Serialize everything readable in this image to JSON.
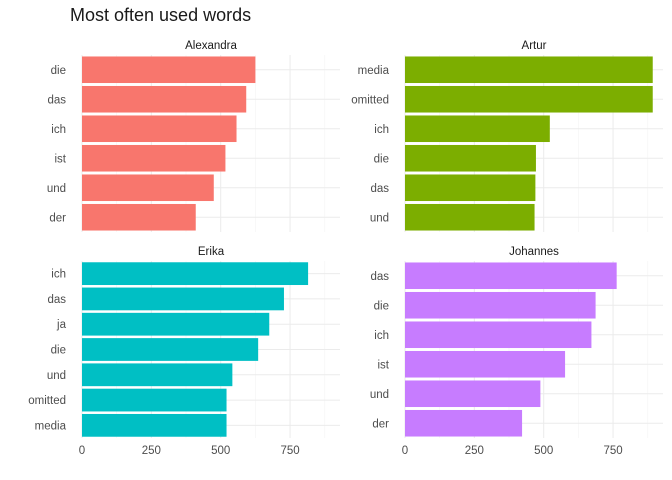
{
  "chart_data": {
    "type": "bar",
    "orientation": "horizontal",
    "title": "Most often used words",
    "xlabel": "",
    "ylabel": "",
    "xlim": [
      0,
      900
    ],
    "x_ticks": [
      "0",
      "250",
      "500",
      "750"
    ],
    "x_tick_values": [
      0,
      250,
      500,
      750
    ],
    "grid": true,
    "panels": [
      {
        "name": "Alexandra",
        "color": "#F8766D",
        "categories": [
          "die",
          "das",
          "ich",
          "ist",
          "und",
          "der"
        ],
        "values": [
          625,
          592,
          557,
          517,
          475,
          410
        ]
      },
      {
        "name": "Artur",
        "color": "#7CAE00",
        "categories": [
          "media",
          "omitted",
          "ich",
          "die",
          "das",
          "und"
        ],
        "values": [
          893,
          893,
          522,
          472,
          470,
          467
        ]
      },
      {
        "name": "Erika",
        "color": "#00BFC4",
        "categories": [
          "ich",
          "das",
          "ja",
          "die",
          "und",
          "omitted",
          "media"
        ],
        "values": [
          815,
          728,
          675,
          635,
          542,
          521,
          521
        ]
      },
      {
        "name": "Johannes",
        "color": "#C77CFF",
        "categories": [
          "das",
          "die",
          "ich",
          "ist",
          "und",
          "der"
        ],
        "values": [
          763,
          687,
          672,
          577,
          488,
          422
        ]
      }
    ]
  }
}
